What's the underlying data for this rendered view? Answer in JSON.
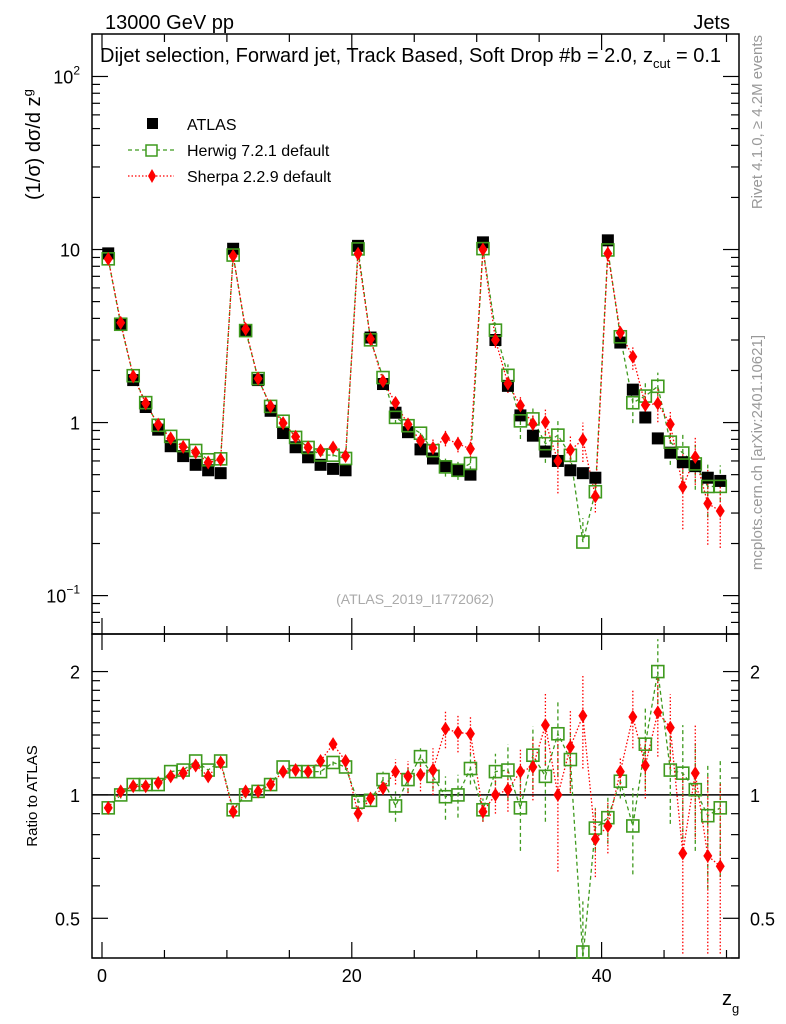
{
  "header": {
    "left": "13000 GeV pp",
    "right": "Jets"
  },
  "side_labels": {
    "rivet": "Rivet 4.1.0, ≥ 4.2M events",
    "mcplots": "mcplots.cern.ch [arXiv:2401.10621]"
  },
  "chart_data": {
    "type": "scatter",
    "title": "Dijet selection, Forward jet, Track Based, Soft Drop #beta = 2.0, z_cut = 0.1",
    "title_main": "Dijet selection, Forward jet, Track Based, Soft Drop #b",
    "title_tail": "= 2.0, z",
    "title_sub": "cut",
    "title_end": "= 0.1",
    "ylabel": "(1/σ) dσ/d z",
    "ylabel_sub": "g",
    "xlabel": "z",
    "xlabel_sub": "g",
    "ratio_ylabel": "Ratio to ATLAS",
    "analysis_tag": "(ATLAS_2019_I1772062)",
    "xlim": [
      -0.8,
      51
    ],
    "ylim": [
      0.06,
      176
    ],
    "yscale": "log",
    "ratio_ylim": [
      0.4,
      2.47
    ],
    "ratio_yscale": "log",
    "x_tick_labels": [
      "0",
      "20",
      "40"
    ],
    "y_tick_labels": [
      {
        "v": 100,
        "t": "10",
        "sup": "2"
      },
      {
        "v": 10,
        "t": "10",
        "sup": ""
      },
      {
        "v": 1,
        "t": "1",
        "sup": ""
      },
      {
        "v": 0.1,
        "t": "10",
        "sup": "−1"
      }
    ],
    "ratio_tick_labels": [
      {
        "v": 2,
        "t": "2"
      },
      {
        "v": 1,
        "t": "1"
      },
      {
        "v": 0.5,
        "t": "0.5"
      }
    ],
    "legend_position": "top-left",
    "x": [
      0.5,
      1.5,
      2.5,
      3.5,
      4.5,
      5.5,
      6.5,
      7.5,
      8.5,
      9.5,
      10.5,
      11.5,
      12.5,
      13.5,
      14.5,
      15.5,
      16.5,
      17.5,
      18.5,
      19.5,
      20.5,
      21.5,
      22.5,
      23.5,
      24.5,
      25.5,
      26.5,
      27.5,
      28.5,
      29.5,
      30.5,
      31.5,
      32.5,
      33.5,
      34.5,
      35.5,
      36.5,
      37.5,
      38.5,
      39.5,
      40.5,
      41.5,
      42.5,
      43.5,
      44.5,
      45.5,
      46.5,
      47.5,
      48.5,
      49.5
    ],
    "series": [
      {
        "name": "ATLAS",
        "color": "#000000",
        "values": [
          9.5,
          3.7,
          1.76,
          1.23,
          0.91,
          0.73,
          0.64,
          0.57,
          0.53,
          0.51,
          10.1,
          3.4,
          1.76,
          1.17,
          0.87,
          0.72,
          0.63,
          0.57,
          0.54,
          0.53,
          10.5,
          3.1,
          1.67,
          1.14,
          0.88,
          0.7,
          0.62,
          0.56,
          0.53,
          0.5,
          11.0,
          3.0,
          1.63,
          1.1,
          0.84,
          0.68,
          0.6,
          0.53,
          0.51,
          0.48,
          11.3,
          2.9,
          1.55,
          1.07,
          0.81,
          0.67,
          0.59,
          0.56,
          0.48,
          0.46
        ]
      },
      {
        "name": "Herwig 7.2.1 default",
        "color": "#3f9a1e",
        "ratio": [
          0.93,
          1.0,
          1.06,
          1.06,
          1.06,
          1.14,
          1.15,
          1.21,
          1.15,
          1.21,
          0.92,
          1.0,
          1.02,
          1.06,
          1.17,
          1.14,
          1.14,
          1.14,
          1.2,
          1.17,
          0.96,
          0.97,
          1.09,
          0.94,
          1.09,
          1.24,
          1.11,
          0.99,
          1.0,
          1.16,
          0.92,
          1.14,
          1.15,
          0.93,
          1.25,
          1.11,
          1.41,
          1.22,
          0.4,
          0.83,
          0.88,
          1.08,
          0.84,
          1.33,
          2.0,
          1.15,
          1.13,
          1.03,
          0.89,
          0.93
        ],
        "ratio_err": [
          0.02,
          0.02,
          0.02,
          0.02,
          0.02,
          0.02,
          0.02,
          0.02,
          0.02,
          0.02,
          0.02,
          0.02,
          0.02,
          0.02,
          0.02,
          0.02,
          0.02,
          0.02,
          0.02,
          0.02,
          0.04,
          0.03,
          0.05,
          0.08,
          0.08,
          0.06,
          0.08,
          0.12,
          0.12,
          0.1,
          0.06,
          0.12,
          0.18,
          0.2,
          0.22,
          0.25,
          0.3,
          0.2,
          0.15,
          0.1,
          0.12,
          0.1,
          0.2,
          0.3,
          0.4,
          0.3,
          0.35,
          0.3,
          0.3,
          0.3
        ]
      },
      {
        "name": "Sherpa 2.2.9 default",
        "color": "#ff0000",
        "ratio": [
          0.93,
          1.02,
          1.05,
          1.05,
          1.07,
          1.11,
          1.13,
          1.18,
          1.11,
          1.2,
          0.91,
          1.02,
          1.02,
          1.06,
          1.14,
          1.15,
          1.14,
          1.21,
          1.33,
          1.21,
          0.9,
          0.98,
          1.04,
          1.14,
          1.11,
          1.12,
          1.15,
          1.45,
          1.42,
          1.41,
          0.91,
          1.0,
          1.03,
          1.14,
          1.17,
          1.48,
          1.0,
          1.31,
          1.56,
          0.78,
          0.84,
          1.14,
          1.55,
          1.18,
          1.59,
          1.46,
          0.72,
          1.13,
          0.71,
          0.67
        ],
        "ratio_err": [
          0.02,
          0.02,
          0.02,
          0.02,
          0.02,
          0.02,
          0.02,
          0.02,
          0.02,
          0.02,
          0.02,
          0.02,
          0.02,
          0.02,
          0.02,
          0.02,
          0.02,
          0.02,
          0.02,
          0.02,
          0.04,
          0.03,
          0.04,
          0.08,
          0.1,
          0.1,
          0.15,
          0.15,
          0.15,
          0.15,
          0.05,
          0.1,
          0.12,
          0.15,
          0.2,
          0.3,
          0.35,
          0.3,
          0.4,
          0.15,
          0.12,
          0.1,
          0.25,
          0.2,
          0.35,
          0.3,
          0.4,
          0.35,
          0.4,
          0.4
        ]
      }
    ]
  }
}
